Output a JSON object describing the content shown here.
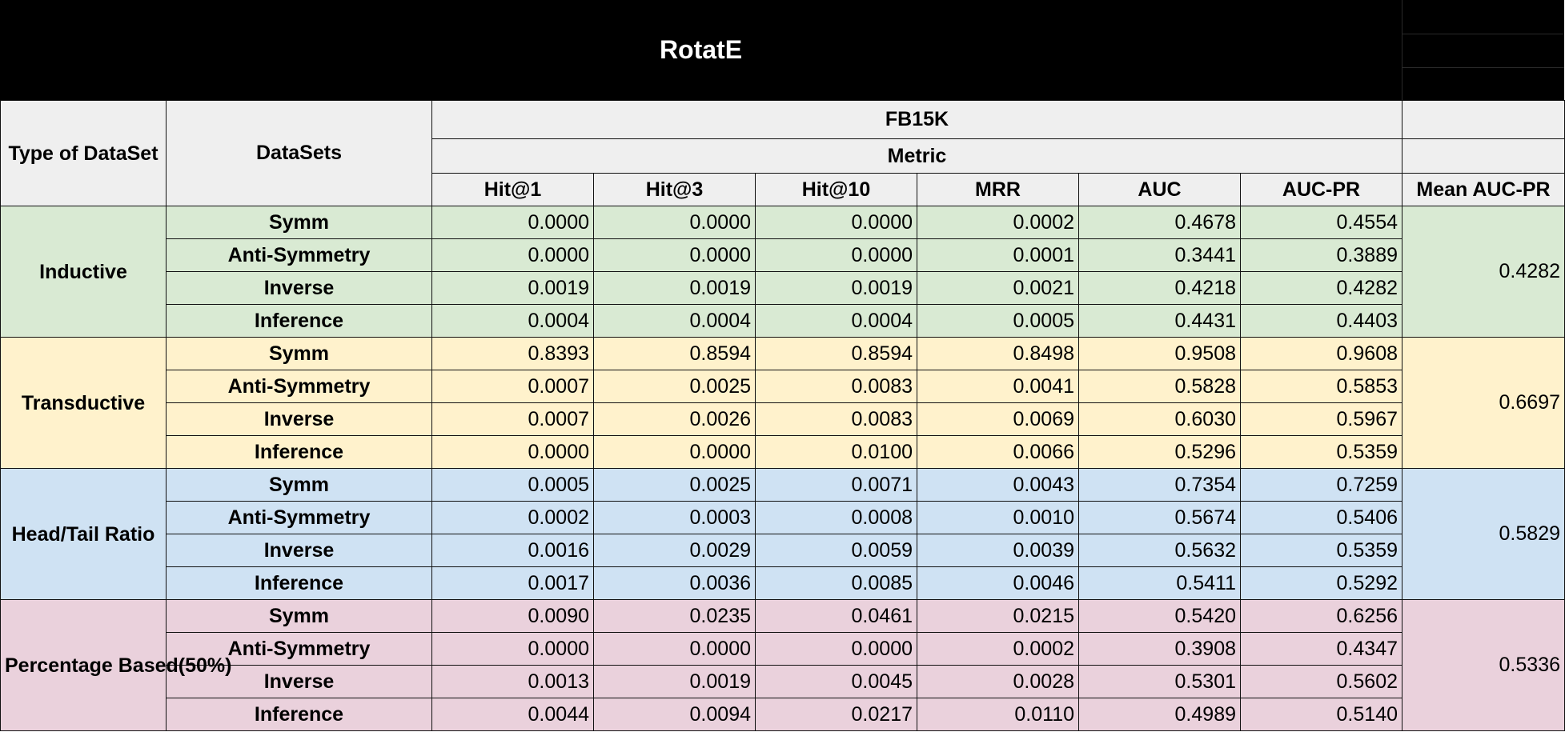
{
  "title": "RotatE",
  "header": {
    "type_label": "Type of DataSet",
    "datasets_label": "DataSets",
    "dataset_name": "FB15K",
    "metric_label": "Metric",
    "columns": [
      "Hit@1",
      "Hit@3",
      "Hit@10",
      "MRR",
      "AUC",
      "AUC-PR"
    ],
    "mean_label": "Mean AUC-PR"
  },
  "groups": [
    {
      "name": "Inductive",
      "bg": "#d9ead3",
      "mean": "0.4282",
      "rows": [
        {
          "name": "Symm",
          "values": [
            "0.0000",
            "0.0000",
            "0.0000",
            "0.0002",
            "0.4678",
            "0.4554"
          ]
        },
        {
          "name": "Anti-Symmetry",
          "values": [
            "0.0000",
            "0.0000",
            "0.0000",
            "0.0001",
            "0.3441",
            "0.3889"
          ]
        },
        {
          "name": "Inverse",
          "values": [
            "0.0019",
            "0.0019",
            "0.0019",
            "0.0021",
            "0.4218",
            "0.4282"
          ]
        },
        {
          "name": "Inference",
          "values": [
            "0.0004",
            "0.0004",
            "0.0004",
            "0.0005",
            "0.4431",
            "0.4403"
          ]
        }
      ]
    },
    {
      "name": "Transductive",
      "bg": "#fff2cc",
      "mean": "0.6697",
      "rows": [
        {
          "name": "Symm",
          "values": [
            "0.8393",
            "0.8594",
            "0.8594",
            "0.8498",
            "0.9508",
            "0.9608"
          ]
        },
        {
          "name": "Anti-Symmetry",
          "values": [
            "0.0007",
            "0.0025",
            "0.0083",
            "0.0041",
            "0.5828",
            "0.5853"
          ]
        },
        {
          "name": "Inverse",
          "values": [
            "0.0007",
            "0.0026",
            "0.0083",
            "0.0069",
            "0.6030",
            "0.5967"
          ]
        },
        {
          "name": "Inference",
          "values": [
            "0.0000",
            "0.0000",
            "0.0100",
            "0.0066",
            "0.5296",
            "0.5359"
          ]
        }
      ]
    },
    {
      "name": "Head/Tail Ratio",
      "bg": "#cfe2f3",
      "mean": "0.5829",
      "rows": [
        {
          "name": "Symm",
          "values": [
            "0.0005",
            "0.0025",
            "0.0071",
            "0.0043",
            "0.7354",
            "0.7259"
          ]
        },
        {
          "name": "Anti-Symmetry",
          "values": [
            "0.0002",
            "0.0003",
            "0.0008",
            "0.0010",
            "0.5674",
            "0.5406"
          ]
        },
        {
          "name": "Inverse",
          "values": [
            "0.0016",
            "0.0029",
            "0.0059",
            "0.0039",
            "0.5632",
            "0.5359"
          ]
        },
        {
          "name": "Inference",
          "values": [
            "0.0017",
            "0.0036",
            "0.0085",
            "0.0046",
            "0.5411",
            "0.5292"
          ]
        }
      ]
    },
    {
      "name": "Percentage Based(50%)",
      "bg": "#ead1dc",
      "mean": "0.5336",
      "rows": [
        {
          "name": "Symm",
          "values": [
            "0.0090",
            "0.0235",
            "0.0461",
            "0.0215",
            "0.5420",
            "0.6256"
          ]
        },
        {
          "name": "Anti-Symmetry",
          "values": [
            "0.0000",
            "0.0000",
            "0.0000",
            "0.0002",
            "0.3908",
            "0.4347"
          ]
        },
        {
          "name": "Inverse",
          "values": [
            "0.0013",
            "0.0019",
            "0.0045",
            "0.0028",
            "0.5301",
            "0.5602"
          ]
        },
        {
          "name": "Inference",
          "values": [
            "0.0044",
            "0.0094",
            "0.0217",
            "0.0110",
            "0.4989",
            "0.5140"
          ]
        }
      ]
    }
  ]
}
